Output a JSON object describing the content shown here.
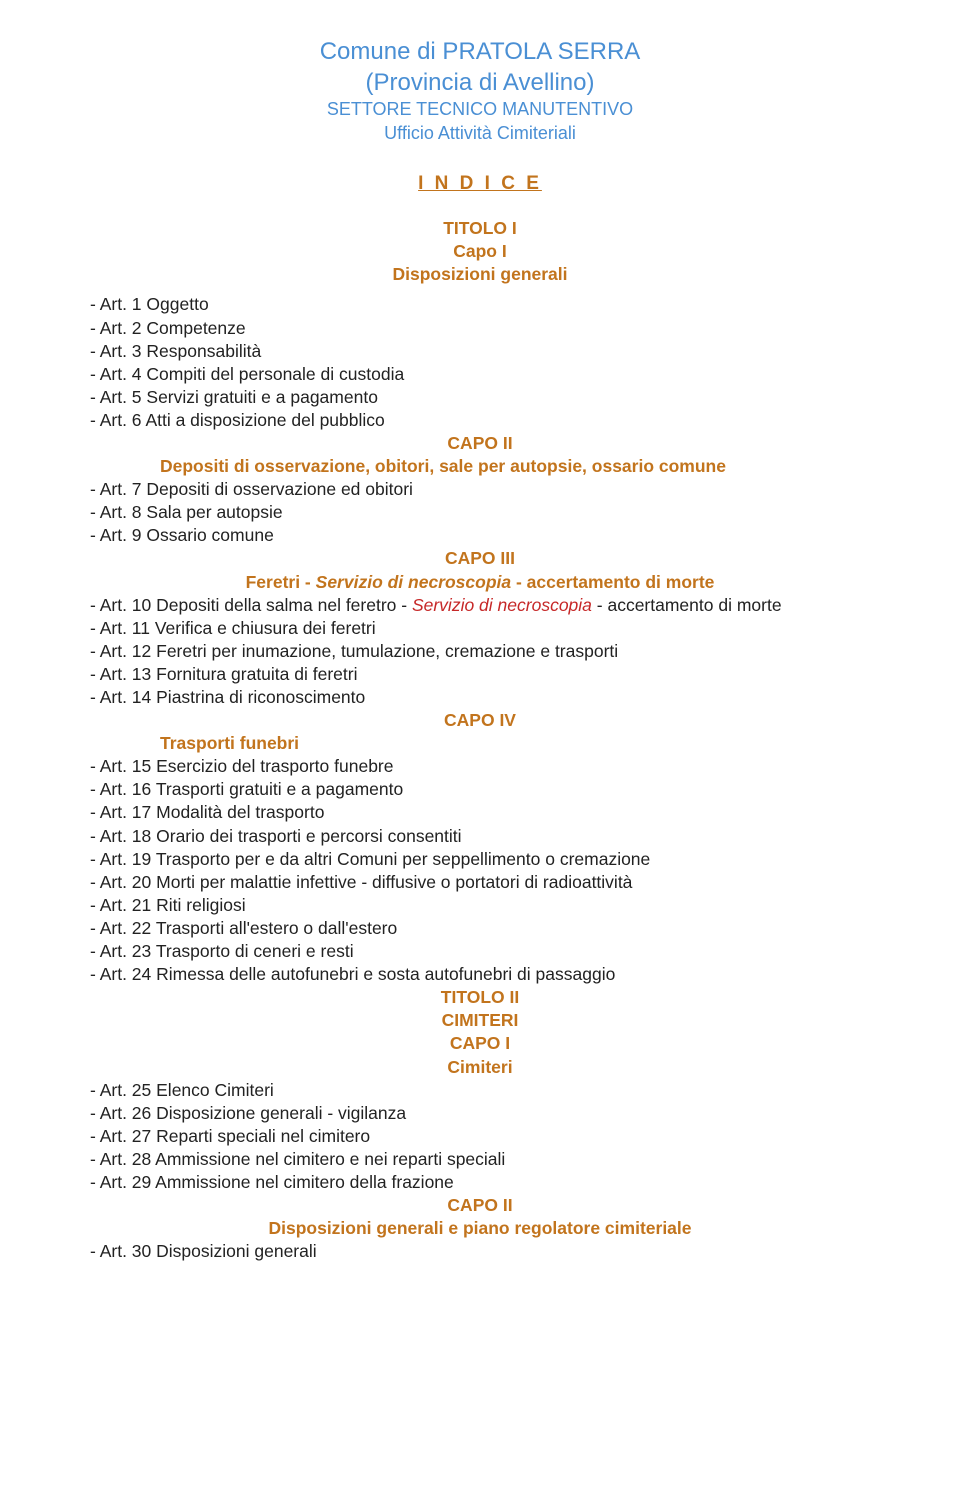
{
  "header": {
    "title": "Comune di PRATOLA  SERRA",
    "sub1": "(Provincia di Avellino)",
    "sub2": "SETTORE TECNICO MANUTENTIVO",
    "sub3": "Ufficio Attività Cimiteriali"
  },
  "indice": "I N D I C E",
  "titolo1": {
    "line1": "TITOLO I",
    "line2": "Capo I",
    "line3": "Disposizioni generali"
  },
  "arts1": [
    "- Art. 1 Oggetto",
    "- Art. 2 Competenze",
    "- Art. 3 Responsabilità",
    "- Art. 4 Compiti del personale di custodia",
    "- Art. 5 Servizi gratuiti e a pagamento",
    "- Art. 6 Atti a disposizione del pubblico"
  ],
  "capo2": {
    "title": "CAPO II",
    "sub": "Depositi di osservazione, obitori, sale per autopsie, ossario comune"
  },
  "arts2": [
    "- Art. 7 Depositi di osservazione ed obitori",
    "- Art. 8 Sala per autopsie",
    "- Art. 9 Ossario comune"
  ],
  "capo3": {
    "title": "CAPO III",
    "sub_pre": "Feretri - ",
    "sub_red": "Servizio di necroscopia",
    "sub_post": " - accertamento di morte"
  },
  "art10": {
    "pre": "- Art. 10 Depositi della salma nel feretro - ",
    "red": "Servizio di necroscopia",
    "post": " - accertamento di morte"
  },
  "arts3": [
    "- Art. 11 Verifica e chiusura dei feretri",
    "- Art. 12 Feretri per inumazione, tumulazione, cremazione e trasporti",
    "- Art. 13 Fornitura gratuita di feretri",
    "- Art. 14 Piastrina di riconoscimento"
  ],
  "capo4": {
    "title": "CAPO IV",
    "sub": "Trasporti funebri"
  },
  "arts4": [
    "- Art. 15 Esercizio del trasporto funebre",
    "- Art. 16 Trasporti gratuiti e a pagamento",
    "- Art. 17 Modalità del trasporto",
    "- Art. 18 Orario dei trasporti e percorsi consentiti",
    "- Art. 19 Trasporto per e da altri Comuni per seppellimento o cremazione",
    "- Art. 20 Morti per malattie infettive - diffusive o portatori di radioattività",
    "- Art. 21 Riti religiosi",
    "- Art. 22 Trasporti all'estero o dall'estero",
    "- Art. 23 Trasporto di ceneri e resti",
    "- Art. 24 Rimessa delle autofunebri e sosta autofunebri di passaggio"
  ],
  "titolo2": {
    "line1": "TITOLO II",
    "line2": "CIMITERI",
    "line3": "CAPO I",
    "line4": "Cimiteri"
  },
  "arts5": [
    "- Art. 25 Elenco Cimiteri",
    "- Art. 26 Disposizione generali - vigilanza",
    "- Art. 27 Reparti speciali nel cimitero",
    "- Art. 28 Ammissione nel cimitero e nei reparti speciali",
    "- Art. 29 Ammissione nel cimitero della frazione"
  ],
  "capo2b": {
    "title": "CAPO II",
    "sub": "Disposizioni generali e piano regolatore cimiteriale"
  },
  "arts6": [
    "- Art. 30 Disposizioni generali"
  ],
  "colors": {
    "blue": "#4a8fd4",
    "orange": "#c2741d",
    "red": "#c62828",
    "text": "#222222",
    "bg": "#ffffff"
  },
  "fonts": {
    "family": "Century Gothic",
    "header_title_pt": 24,
    "header_sub_pt": 18,
    "indice_pt": 19,
    "body_pt": 17.5
  }
}
